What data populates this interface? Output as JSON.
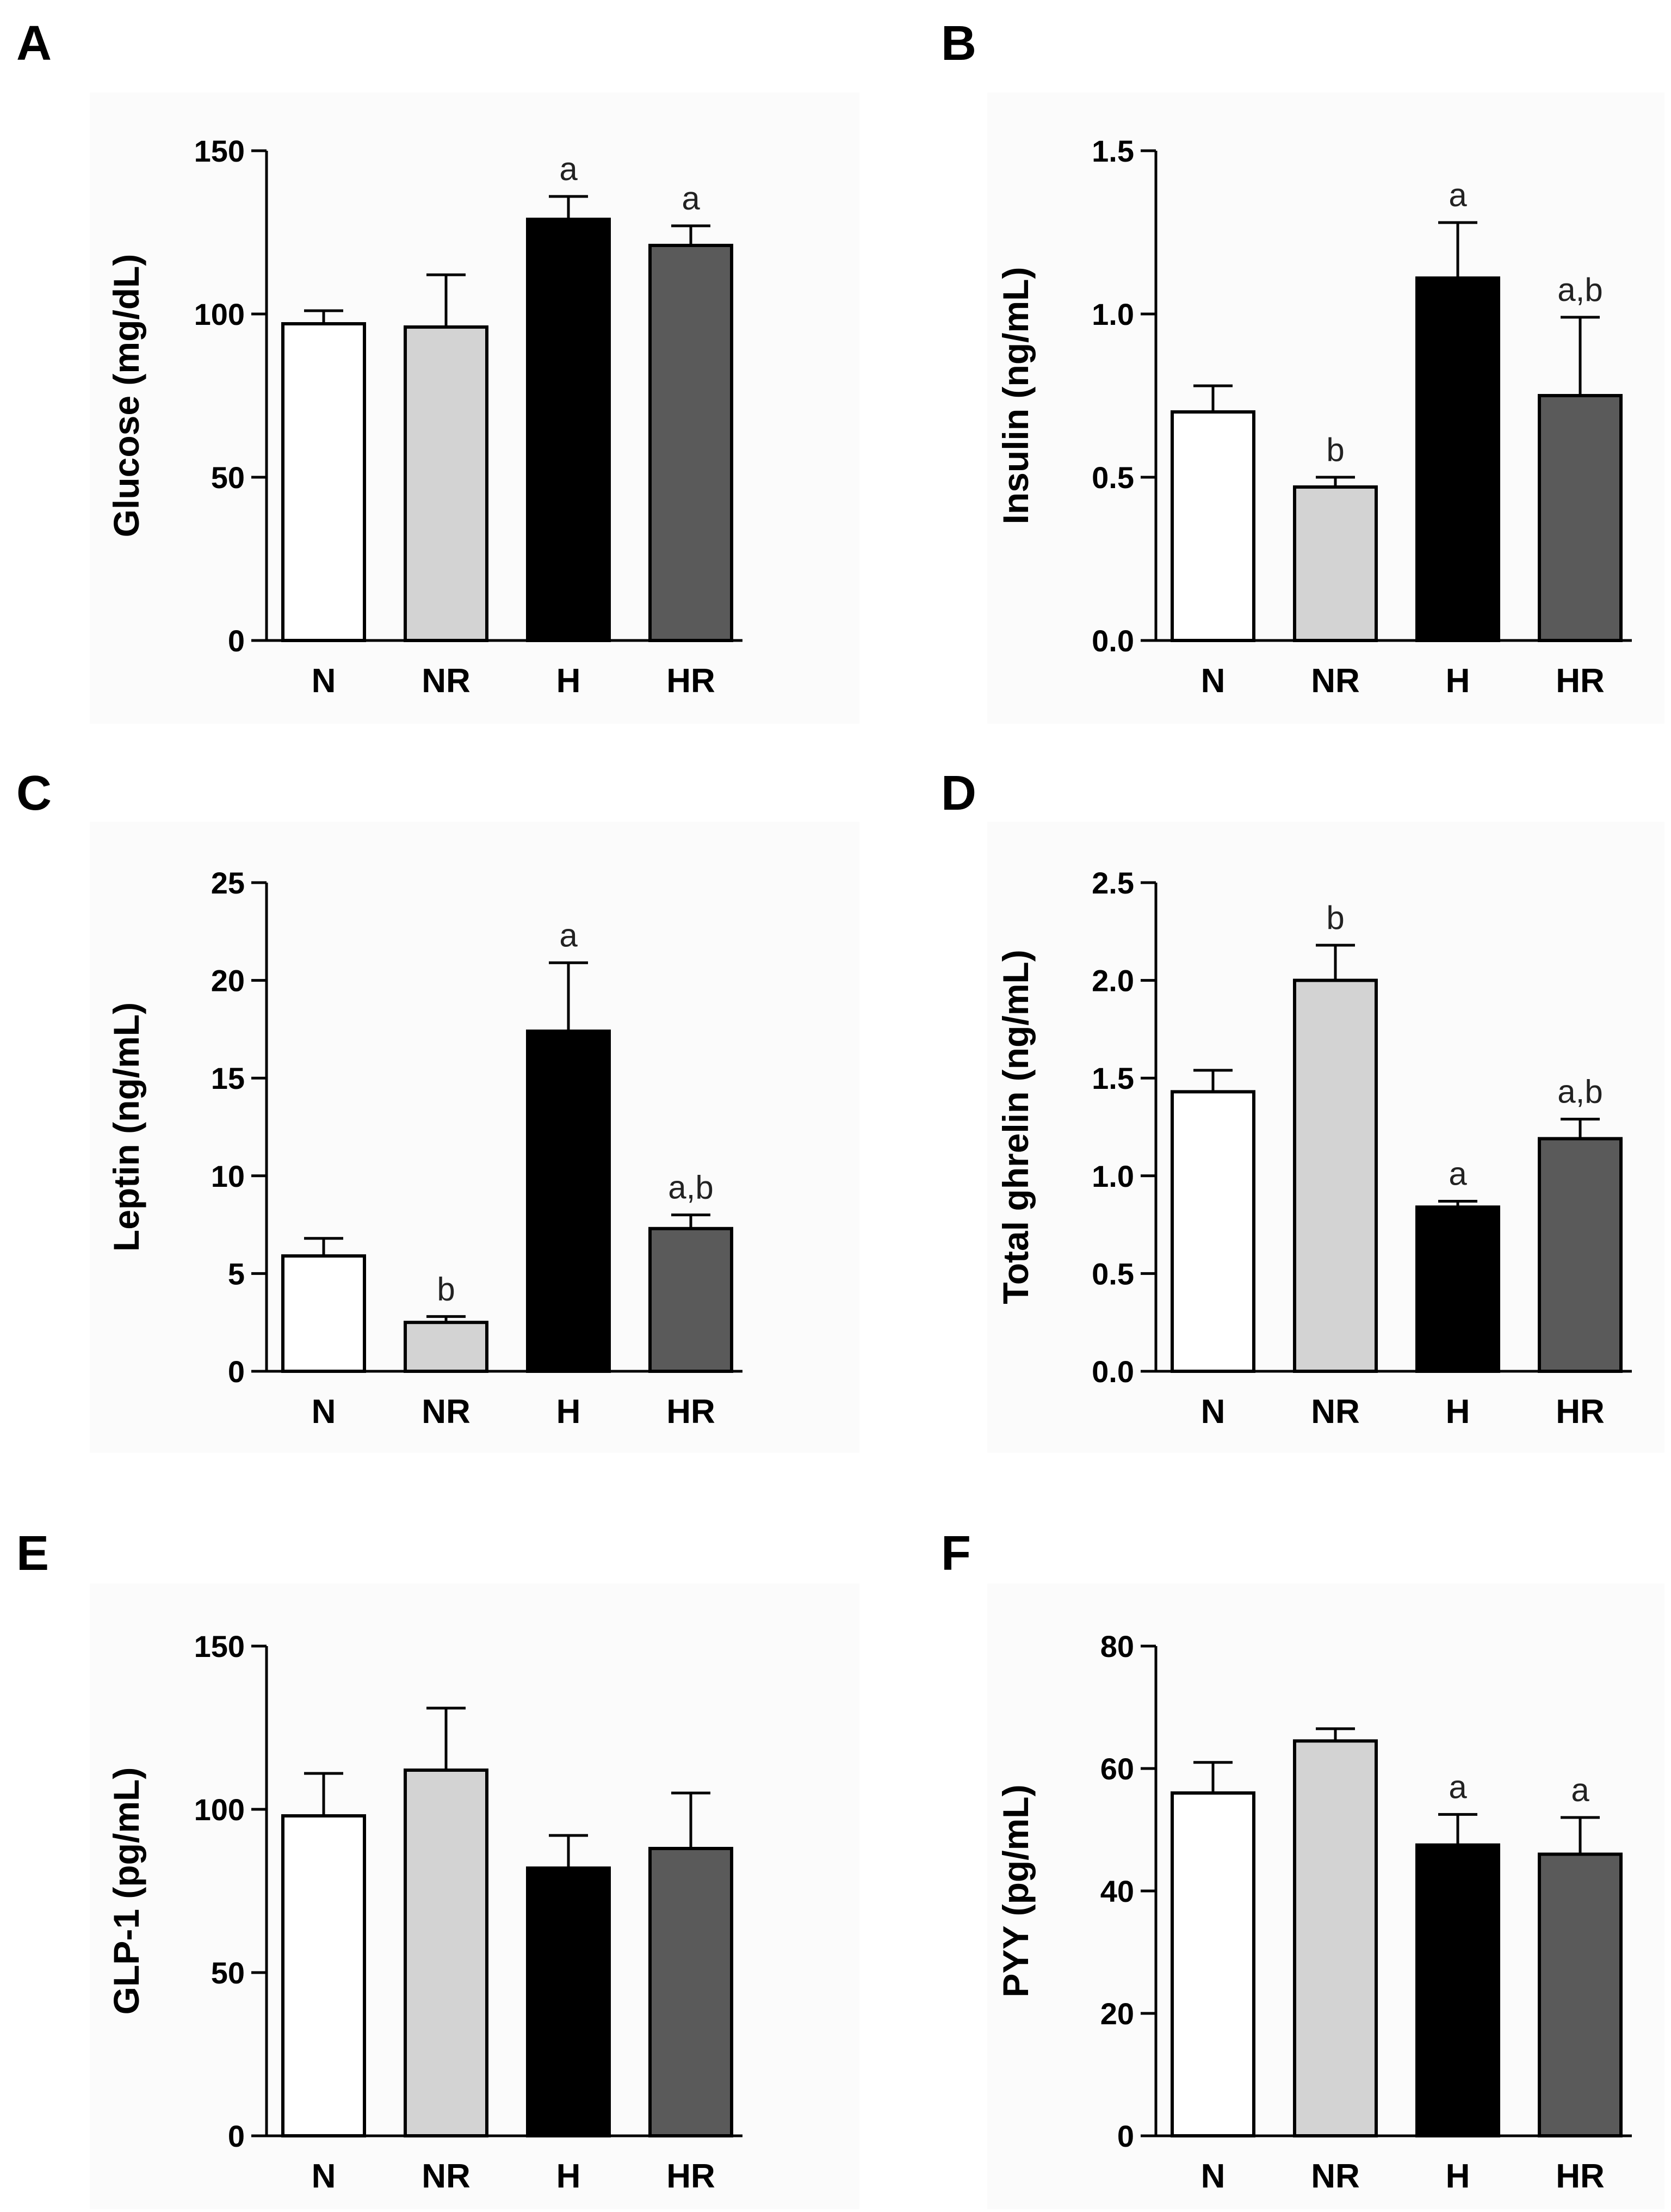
{
  "figure": {
    "groups": [
      "N",
      "NR",
      "H",
      "HR"
    ],
    "bar_colors": [
      "#ffffff",
      "#d3d3d3",
      "#000000",
      "#5a5a5a"
    ],
    "bar_outline": "#000000",
    "panel_background": "#fbfbfb"
  },
  "chart_data": [
    {
      "panel": "A",
      "type": "bar",
      "title": "",
      "xlabel": "",
      "ylabel": "Glucose (mg/dL)",
      "categories": [
        "N",
        "NR",
        "H",
        "HR"
      ],
      "values": [
        97,
        96,
        129,
        121
      ],
      "errors": [
        4,
        16,
        7,
        6
      ],
      "significance": [
        "",
        "",
        "a",
        "a"
      ],
      "ylim": [
        0,
        150
      ],
      "yticks": [
        0,
        50,
        100,
        150
      ],
      "ytick_labels": [
        "0",
        "50",
        "100",
        "150"
      ],
      "grid": false
    },
    {
      "panel": "B",
      "type": "bar",
      "title": "",
      "xlabel": "",
      "ylabel": "Insulin (ng/mL)",
      "categories": [
        "N",
        "NR",
        "H",
        "HR"
      ],
      "values": [
        0.7,
        0.47,
        1.11,
        0.75
      ],
      "errors": [
        0.08,
        0.03,
        0.17,
        0.24
      ],
      "significance": [
        "",
        "b",
        "a",
        "a,b"
      ],
      "ylim": [
        0,
        1.5
      ],
      "yticks": [
        0,
        0.5,
        1.0,
        1.5
      ],
      "ytick_labels": [
        "0.0",
        "0.5",
        "1.0",
        "1.5"
      ],
      "grid": false
    },
    {
      "panel": "C",
      "type": "bar",
      "title": "",
      "xlabel": "",
      "ylabel": "Leptin (ng/mL)",
      "categories": [
        "N",
        "NR",
        "H",
        "HR"
      ],
      "values": [
        5.9,
        2.5,
        17.4,
        7.3
      ],
      "errors": [
        0.9,
        0.3,
        3.5,
        0.7
      ],
      "significance": [
        "",
        "b",
        "a",
        "a,b"
      ],
      "ylim": [
        0,
        25
      ],
      "yticks": [
        0,
        5,
        10,
        15,
        20,
        25
      ],
      "ytick_labels": [
        "0",
        "5",
        "10",
        "15",
        "20",
        "25"
      ],
      "grid": false
    },
    {
      "panel": "D",
      "type": "bar",
      "title": "",
      "xlabel": "",
      "ylabel": "Total ghrelin (ng/mL)",
      "categories": [
        "N",
        "NR",
        "H",
        "HR"
      ],
      "values": [
        1.43,
        2.0,
        0.84,
        1.19
      ],
      "errors": [
        0.11,
        0.18,
        0.03,
        0.1
      ],
      "significance": [
        "",
        "b",
        "a",
        "a,b"
      ],
      "ylim": [
        0,
        2.5
      ],
      "yticks": [
        0,
        0.5,
        1.0,
        1.5,
        2.0,
        2.5
      ],
      "ytick_labels": [
        "0.0",
        "0.5",
        "1.0",
        "1.5",
        "2.0",
        "2.5"
      ],
      "grid": false
    },
    {
      "panel": "E",
      "type": "bar",
      "title": "",
      "xlabel": "",
      "ylabel": "GLP-1 (pg/mL)",
      "categories": [
        "N",
        "NR",
        "H",
        "HR"
      ],
      "values": [
        98,
        112,
        82,
        88
      ],
      "errors": [
        13,
        19,
        10,
        17
      ],
      "significance": [
        "",
        "",
        "",
        ""
      ],
      "ylim": [
        0,
        150
      ],
      "yticks": [
        0,
        50,
        100,
        150
      ],
      "ytick_labels": [
        "0",
        "50",
        "100",
        "150"
      ],
      "grid": false
    },
    {
      "panel": "F",
      "type": "bar",
      "title": "",
      "xlabel": "",
      "ylabel": "PYY (pg/mL)",
      "categories": [
        "N",
        "NR",
        "H",
        "HR"
      ],
      "values": [
        56,
        64.5,
        47.5,
        46
      ],
      "errors": [
        5,
        2,
        5,
        6
      ],
      "significance": [
        "",
        "",
        "a",
        "a"
      ],
      "ylim": [
        0,
        80
      ],
      "yticks": [
        0,
        20,
        40,
        60,
        80
      ],
      "ytick_labels": [
        "0",
        "20",
        "40",
        "60",
        "80"
      ],
      "grid": false
    }
  ]
}
